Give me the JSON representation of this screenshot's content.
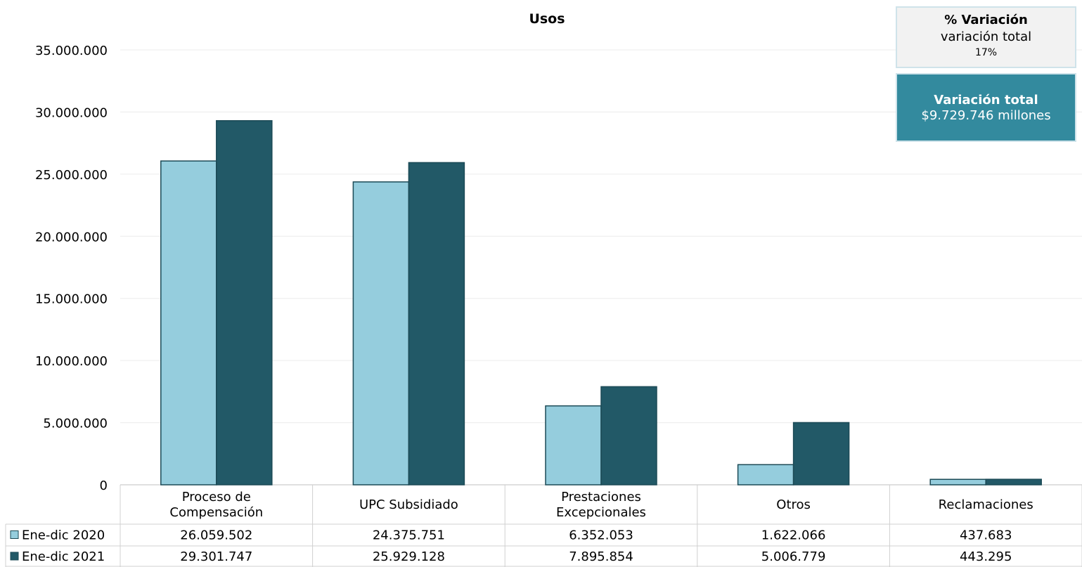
{
  "chart_data": {
    "type": "bar",
    "title": "Usos",
    "categories": [
      "Proceso de Compensación",
      "UPC Subsidiado",
      "Prestaciones Excepcionales",
      "Otros",
      "Reclamaciones"
    ],
    "category_lines": [
      [
        "Proceso de",
        "Compensación"
      ],
      [
        "UPC Subsidiado"
      ],
      [
        "Prestaciones",
        "Excepcionales"
      ],
      [
        "Otros"
      ],
      [
        "Reclamaciones"
      ]
    ],
    "series": [
      {
        "name": "Ene-dic 2020",
        "color": "#95cddd",
        "values": [
          26059502,
          24375751,
          6352053,
          1622066,
          437683
        ],
        "labels": [
          "26.059.502",
          "24.375.751",
          "6.352.053",
          "1.622.066",
          "437.683"
        ]
      },
      {
        "name": "Ene-dic 2021",
        "color": "#225967",
        "values": [
          29301747,
          25929128,
          7895854,
          5006779,
          443295
        ],
        "labels": [
          "29.301.747",
          "25.929.128",
          "7.895.854",
          "5.006.779",
          "443.295"
        ]
      }
    ],
    "ylim": [
      0,
      35000000
    ],
    "yticks": [
      0,
      5000000,
      10000000,
      15000000,
      20000000,
      25000000,
      30000000,
      35000000
    ],
    "ytick_labels": [
      "0",
      "5.000.000",
      "10.000.000",
      "15.000.000",
      "20.000.000",
      "25.000.000",
      "30.000.000",
      "35.000.000"
    ],
    "grid": true,
    "legend": "data-table"
  },
  "pct_box": {
    "title": "% Variación",
    "subtitle": "variación total",
    "value": "17%"
  },
  "total_box": {
    "title": "Variación total",
    "value": "$9.729.746 millones"
  }
}
